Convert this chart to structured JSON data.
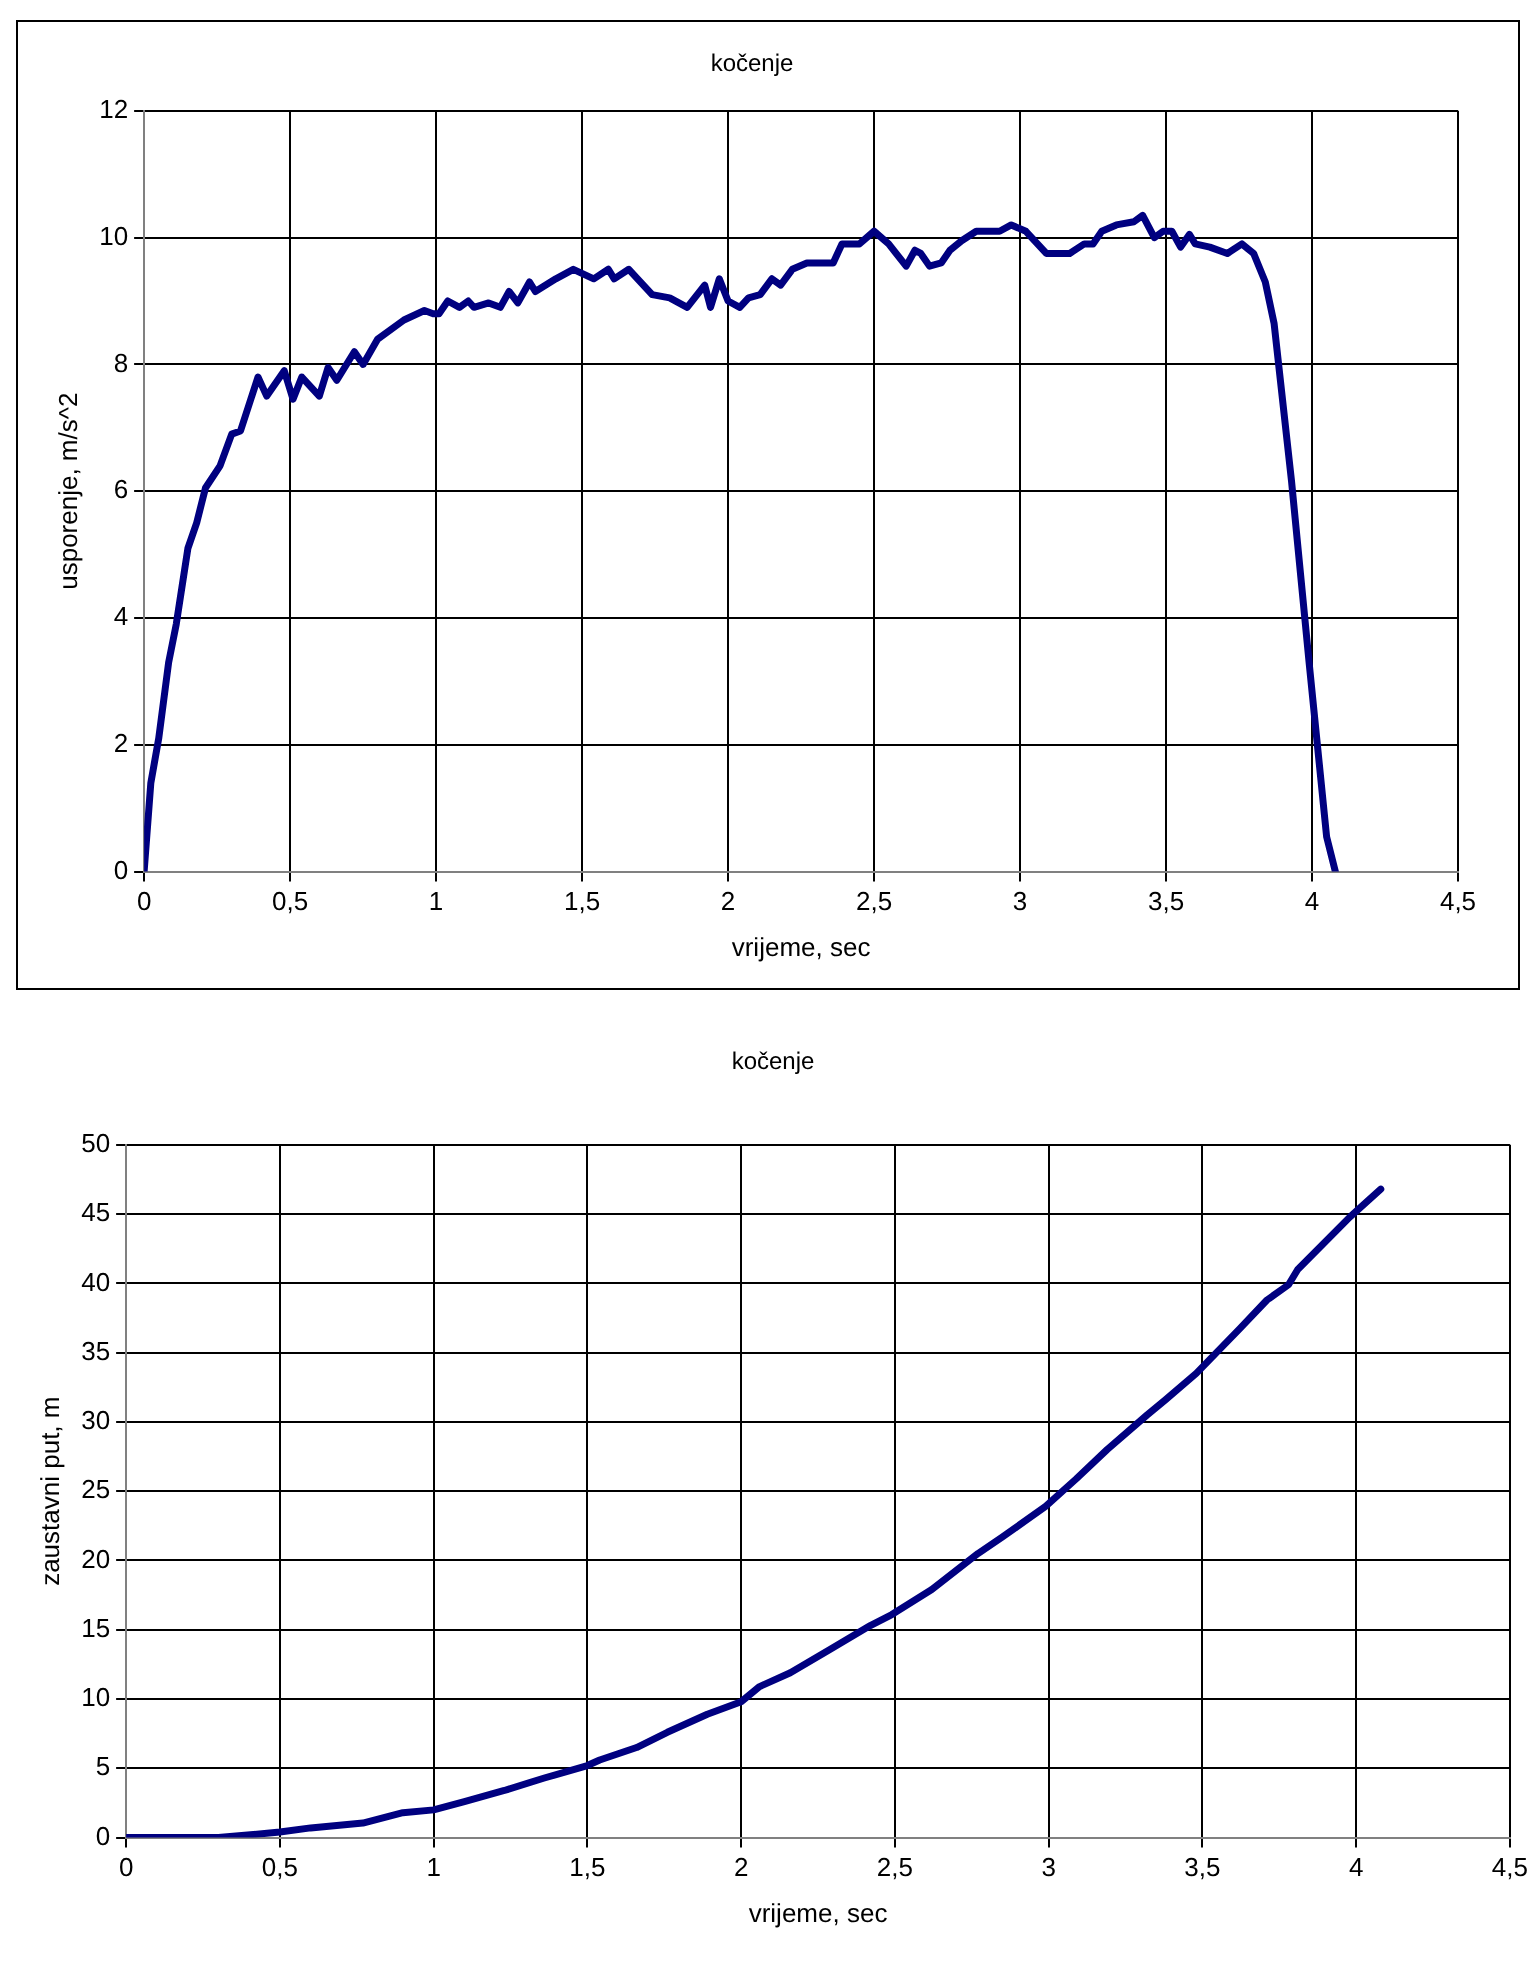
{
  "chart_data": [
    {
      "type": "line",
      "title": "kočenje",
      "xlabel": "vrijeme, sec",
      "ylabel": "usporenje, m/s^2",
      "xlim": [
        0,
        4.5
      ],
      "ylim": [
        0,
        12
      ],
      "xticks": [
        0,
        {
          "value": 0.5,
          "label": "0,5"
        },
        1,
        {
          "value": 1.5,
          "label": "1,5"
        },
        2,
        {
          "value": 2.5,
          "label": "2,5"
        },
        3,
        {
          "value": 3.5,
          "label": "3,5"
        },
        4,
        {
          "value": 4.5,
          "label": "4,5"
        }
      ],
      "yticks": [
        0,
        2,
        4,
        6,
        8,
        10,
        12
      ],
      "grid": true,
      "series": [
        {
          "color": "#000080",
          "x": [
            0,
            0.023,
            0.05,
            0.084,
            0.11,
            0.15,
            0.18,
            0.21,
            0.26,
            0.3,
            0.33,
            0.39,
            0.42,
            0.48,
            0.51,
            0.54,
            0.6,
            0.63,
            0.66,
            0.72,
            0.75,
            0.8,
            0.89,
            0.96,
            0.99,
            1.01,
            1.04,
            1.08,
            1.11,
            1.13,
            1.18,
            1.22,
            1.25,
            1.28,
            1.32,
            1.34,
            1.41,
            1.47,
            1.54,
            1.59,
            1.61,
            1.66,
            1.69,
            1.74,
            1.8,
            1.86,
            1.92,
            1.94,
            1.97,
            2.0,
            2.04,
            2.07,
            2.11,
            2.15,
            2.18,
            2.22,
            2.27,
            2.36,
            2.39,
            2.45,
            2.5,
            2.55,
            2.61,
            2.64,
            2.66,
            2.69,
            2.73,
            2.76,
            2.8,
            2.85,
            2.93,
            2.97,
            3.02,
            3.09,
            3.17,
            3.22,
            3.25,
            3.28,
            3.33,
            3.39,
            3.42,
            3.46,
            3.49,
            3.52,
            3.55,
            3.58,
            3.6,
            3.65,
            3.71,
            3.76,
            3.8,
            3.84,
            3.87,
            3.93,
            3.99,
            4.05,
            4.08
          ],
          "values": [
            0,
            1.4,
            2.1,
            3.3,
            3.9,
            5.1,
            5.5,
            6.05,
            6.4,
            6.9,
            6.95,
            7.8,
            7.5,
            7.9,
            7.45,
            7.8,
            7.5,
            7.95,
            7.75,
            8.2,
            8.0,
            8.4,
            8.7,
            8.85,
            8.8,
            8.8,
            9.0,
            8.9,
            9.0,
            8.9,
            8.97,
            8.9,
            9.15,
            8.97,
            9.3,
            9.15,
            9.35,
            9.5,
            9.35,
            9.5,
            9.35,
            9.5,
            9.35,
            9.1,
            9.05,
            8.9,
            9.25,
            8.9,
            9.35,
            9.0,
            8.9,
            9.05,
            9.1,
            9.35,
            9.25,
            9.5,
            9.6,
            9.6,
            9.9,
            9.9,
            10.1,
            9.9,
            9.55,
            9.8,
            9.75,
            9.55,
            9.6,
            9.8,
            9.95,
            10.1,
            10.1,
            10.2,
            10.1,
            9.75,
            9.75,
            9.9,
            9.9,
            10.1,
            10.2,
            10.25,
            10.35,
            10.0,
            10.1,
            10.1,
            9.85,
            10.05,
            9.9,
            9.85,
            9.75,
            9.9,
            9.75,
            9.3,
            8.65,
            6.15,
            3.3,
            0.55,
            0
          ]
        }
      ]
    },
    {
      "type": "line",
      "title": "kočenje",
      "xlabel": "vrijeme, sec",
      "ylabel": "zaustavni put, m",
      "xlim": [
        0,
        4.5
      ],
      "ylim": [
        0,
        50
      ],
      "xticks": [
        0,
        {
          "value": 0.5,
          "label": "0,5"
        },
        1,
        {
          "value": 1.5,
          "label": "1,5"
        },
        2,
        {
          "value": 2.5,
          "label": "2,5"
        },
        3,
        {
          "value": 3.5,
          "label": "3,5"
        },
        4,
        {
          "value": 4.5,
          "label": "4,5"
        }
      ],
      "yticks": [
        0,
        5,
        10,
        15,
        20,
        25,
        30,
        35,
        40,
        45,
        50
      ],
      "grid": true,
      "series": [
        {
          "color": "#000080",
          "x": [
            0,
            0.3,
            0.5,
            0.6,
            0.77,
            0.9,
            1.0,
            1.1,
            1.23,
            1.36,
            1.5,
            1.54,
            1.66,
            1.76,
            1.89,
            2.0,
            2.06,
            2.16,
            2.29,
            2.42,
            2.49,
            2.62,
            2.77,
            2.85,
            2.99,
            3.09,
            3.19,
            3.32,
            3.38,
            3.48,
            3.62,
            3.71,
            3.78,
            3.81,
            3.98,
            4.08
          ],
          "values": [
            0,
            0,
            0.4,
            0.7,
            1.05,
            1.8,
            2.0,
            2.6,
            3.4,
            4.3,
            5.2,
            5.6,
            6.5,
            7.6,
            8.9,
            9.8,
            10.9,
            11.9,
            13.6,
            15.3,
            16.1,
            17.9,
            20.5,
            21.7,
            23.9,
            25.9,
            28.0,
            30.5,
            31.6,
            33.5,
            36.7,
            38.8,
            39.9,
            41.0,
            44.8,
            46.8
          ]
        }
      ]
    }
  ]
}
